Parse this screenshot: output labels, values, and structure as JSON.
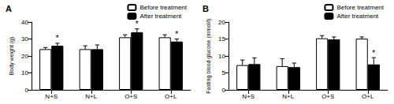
{
  "chart_data": [
    {
      "type": "bar",
      "title": "A",
      "y_label": "Body weight (g)",
      "categories": [
        "N+S",
        "N+L",
        "O+S",
        "O+L"
      ],
      "series": [
        {
          "name": "Before treatment",
          "color": "#ffffff",
          "values": [
            24,
            24,
            31,
            31
          ],
          "errors": [
            1,
            2,
            1.5,
            1.5
          ]
        },
        {
          "name": "After treatment",
          "color": "#000000",
          "values": [
            26,
            24,
            34,
            28.5
          ],
          "errors": [
            1.5,
            2.5,
            2,
            1.5
          ]
        }
      ],
      "annotations": [
        {
          "series": "After treatment",
          "category": "N+S",
          "text": "*"
        },
        {
          "series": "After treatment",
          "category": "O+S",
          "text": "*"
        },
        {
          "series": "After treatment",
          "category": "O+L",
          "text": "*"
        }
      ],
      "ylim": [
        0,
        40
      ],
      "yticks": [
        0,
        10,
        20,
        30,
        40
      ],
      "legend": "upper right",
      "grid": false
    },
    {
      "type": "bar",
      "title": "B",
      "y_label": "Fasting blood glucose (mmol/l)",
      "categories": [
        "N+S",
        "N+L",
        "O+S",
        "O+L"
      ],
      "series": [
        {
          "name": "Before treatment",
          "color": "#ffffff",
          "values": [
            7.3,
            7,
            15.2,
            15.1
          ],
          "errors": [
            1.5,
            2.2,
            0.8,
            0.5
          ]
        },
        {
          "name": "After treatment",
          "color": "#000000",
          "values": [
            7.6,
            6.7,
            14.9,
            7.5
          ],
          "errors": [
            1.8,
            1.2,
            0.7,
            2
          ]
        }
      ],
      "annotations": [
        {
          "series": "After treatment",
          "category": "O+L",
          "text": "*"
        }
      ],
      "ylim": [
        0,
        20
      ],
      "yticks": [
        0,
        5,
        10,
        15,
        20
      ],
      "legend": "upper right",
      "grid": false
    }
  ]
}
